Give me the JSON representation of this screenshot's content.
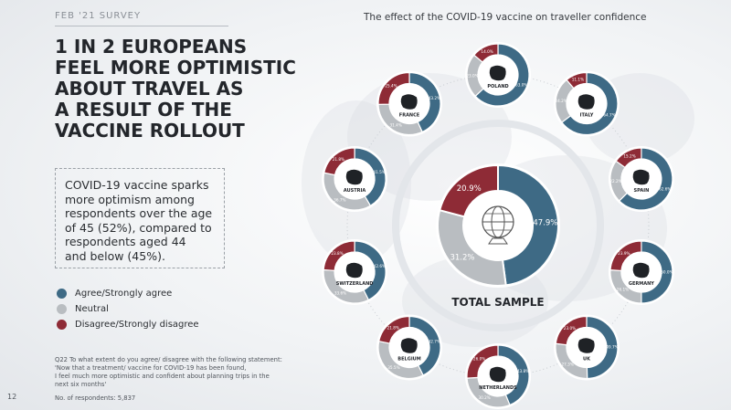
{
  "page": {
    "survey_tag": "FEB '21 SURVEY",
    "headline": "1 IN 2 EUROPEANS\nFEEL MORE OPTIMISTIC\nABOUT TRAVEL AS\nA RESULT OF THE\nVACCINE ROLLOUT",
    "callout": "COVID-19 vaccine sparks\nmore optimism among\nrespondents over the age\nof 45 (52%), compared to\nrespondents aged 44\nand below (45%).",
    "question": "Q22 To what extent do you agree/ disagree with the following statement:\n'Now that a treatment/ vaccine for COVID-19 has been found,\nI feel much more optimistic and confident about planning trips in the\nnext six months'",
    "respondents": "No. of respondents: 5,837",
    "page_number": "12"
  },
  "colors": {
    "agree": "#3e6a85",
    "neutral": "#b9bdc1",
    "disagree": "#8e2b36"
  },
  "chart_data": {
    "type": "pie",
    "title": "The effect of the COVID-19 vaccine on traveller confidence",
    "legend": [
      {
        "key": "agree",
        "label": "Agree/Strongly agree"
      },
      {
        "key": "neutral",
        "label": "Neutral"
      },
      {
        "key": "disagree",
        "label": "Disagree/Strongly disagree"
      }
    ],
    "legend_position": "left",
    "total": {
      "name": "TOTAL SAMPLE",
      "agree": 47.9,
      "neutral": 31.2,
      "disagree": 20.9,
      "labels": {
        "agree": "47.9%",
        "neutral": "31.2%",
        "disagree": "20.9%"
      },
      "icon": "globe-with-plane-icon"
    },
    "countries": [
      {
        "name": "POLAND",
        "agree": 63.0,
        "neutral": 23.0,
        "disagree": 14.0,
        "labels": {
          "agree": "63.0%",
          "neutral": "23.0%",
          "disagree": "14.0%"
        },
        "icon": "poland-map-icon"
      },
      {
        "name": "ITALY",
        "agree": 64.7,
        "neutral": 24.2,
        "disagree": 11.1,
        "labels": {
          "agree": "64.7%",
          "neutral": "24.2%",
          "disagree": "11.1%"
        },
        "icon": "italy-map-icon"
      },
      {
        "name": "SPAIN",
        "agree": 62.6,
        "neutral": 22.2,
        "disagree": 15.2,
        "labels": {
          "agree": "62.6%",
          "neutral": "22.2%",
          "disagree": "15.2%"
        },
        "icon": "spain-map-icon"
      },
      {
        "name": "GERMANY",
        "agree": 50.0,
        "neutral": 26.1,
        "disagree": 23.9,
        "labels": {
          "agree": "50.0%",
          "neutral": "26.1%",
          "disagree": "23.9%"
        },
        "icon": "germany-map-icon"
      },
      {
        "name": "UK",
        "agree": 49.7,
        "neutral": 27.3,
        "disagree": 23.0,
        "labels": {
          "agree": "49.7%",
          "neutral": "27.3%",
          "disagree": "23.0%"
        },
        "icon": "uk-map-icon"
      },
      {
        "name": "NETHERLANDS",
        "agree": 43.8,
        "neutral": 30.2,
        "disagree": 26.0,
        "labels": {
          "agree": "43.8%",
          "neutral": "30.2%",
          "disagree": "26.0%"
        },
        "icon": "netherlands-map-icon"
      },
      {
        "name": "BELGIUM",
        "agree": 42.7,
        "neutral": 35.5,
        "disagree": 21.8,
        "labels": {
          "agree": "42.7%",
          "neutral": "35.5%",
          "disagree": "21.8%"
        },
        "icon": "belgium-map-icon"
      },
      {
        "name": "SWITZERLAND",
        "agree": 42.6,
        "neutral": 33.6,
        "disagree": 23.8,
        "labels": {
          "agree": "42.6%",
          "neutral": "33.6%",
          "disagree": "23.8%"
        },
        "icon": "switzerland-map-icon"
      },
      {
        "name": "AUSTRIA",
        "agree": 41.5,
        "neutral": 36.7,
        "disagree": 21.8,
        "labels": {
          "agree": "41.5%",
          "neutral": "36.7%",
          "disagree": "21.8%"
        },
        "icon": "austria-map-icon"
      },
      {
        "name": "FRANCE",
        "agree": 43.2,
        "neutral": 31.4,
        "disagree": 25.4,
        "labels": {
          "agree": "43.2%",
          "neutral": "31.4%",
          "disagree": "25.4%"
        },
        "icon": "france-map-icon"
      }
    ]
  }
}
